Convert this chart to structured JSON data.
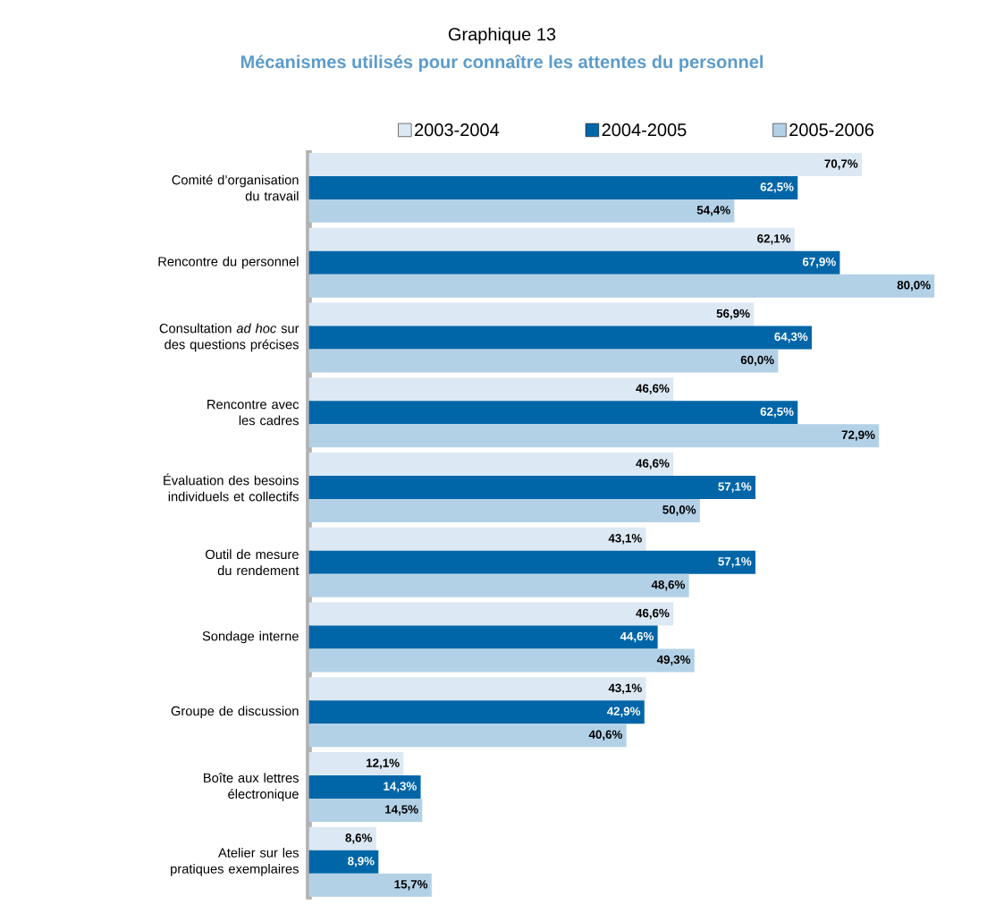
{
  "chart_data": {
    "type": "bar",
    "orientation": "horizontal",
    "title": "Graphique 13",
    "subtitle": "Mécanismes utilisés pour connaître les attentes du personnel",
    "categories": [
      "Comité d’organisation du travail",
      "Rencontre du personnel",
      "Consultation *ad hoc* sur des questions précises",
      "Rencontre avec les cadres",
      "Évaluation des besoins individuels et collectifs",
      "Outil de mesure du rendement",
      "Sondage interne",
      "Groupe de discussion",
      "Boîte aux lettres électronique",
      "Atelier sur les pratiques exemplaires"
    ],
    "tick_labels": "y",
    "legend": "top",
    "series": [
      {
        "name": "2003-2004",
        "color": "#dce8f3",
        "values": [
          70.7,
          62.1,
          56.9,
          46.6,
          46.6,
          43.1,
          46.6,
          43.1,
          12.1,
          8.6
        ],
        "value_labels": [
          "70,7%",
          "62,1%",
          "56,9%",
          "46,6%",
          "46,6%",
          "43,1%",
          "46,6%",
          "43,1%",
          "12,1%",
          "8,6%"
        ]
      },
      {
        "name": "2004-2005",
        "color": "#0066a8",
        "values": [
          62.5,
          67.9,
          64.3,
          62.5,
          57.1,
          57.1,
          44.6,
          42.9,
          14.3,
          8.9
        ],
        "value_labels": [
          "62,5%",
          "67,9%",
          "64,3%",
          "62,5%",
          "57,1%",
          "57,1%",
          "44,6%",
          "42,9%",
          "14,3%",
          "8,9%"
        ]
      },
      {
        "name": "2005-2006",
        "color": "#b3d1e6",
        "values": [
          54.4,
          80.0,
          60.0,
          72.9,
          50.0,
          48.6,
          49.3,
          40.6,
          14.5,
          15.7
        ],
        "value_labels": [
          "54,4%",
          "80,0%",
          "60,0%",
          "72,9%",
          "50,0%",
          "48,6%",
          "49,3%",
          "40,6%",
          "14,5%",
          "15,7%"
        ]
      }
    ]
  }
}
